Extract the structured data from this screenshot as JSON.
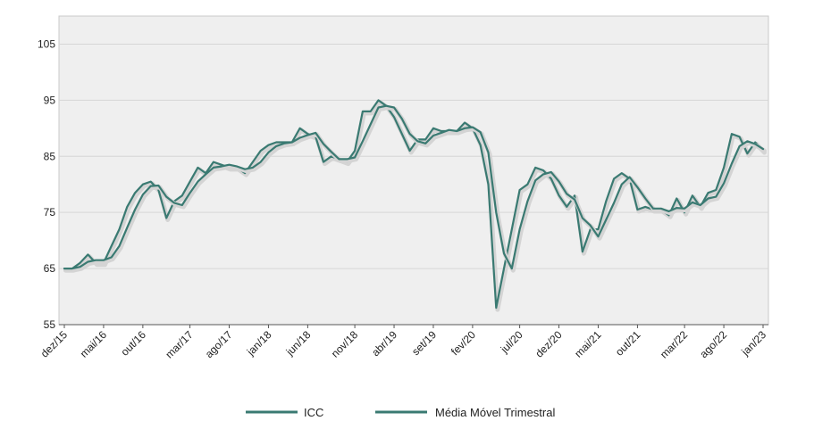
{
  "chart_data": {
    "type": "line",
    "title": "",
    "xlabel": "",
    "ylabel": "",
    "ylim": [
      55,
      110
    ],
    "yticks": [
      55,
      65,
      75,
      85,
      95,
      105
    ],
    "xtick_labels": [
      "dez/15",
      "mai/16",
      "out/16",
      "mar/17",
      "ago/17",
      "jan/18",
      "jun/18",
      "nov/18",
      "abr/19",
      "set/19",
      "fev/20",
      "jul/20",
      "dez/20",
      "mai/21",
      "out/21",
      "mar/22",
      "ago/22",
      "jan/23"
    ],
    "grid": true,
    "legend_position": "bottom",
    "colors": {
      "line": "#3a7a72",
      "plot_bg": "#efefef",
      "grid": "#d6d6d6"
    },
    "series": [
      {
        "name": "ICC",
        "values": [
          65,
          65,
          66,
          67.5,
          66,
          66,
          69,
          72,
          76,
          78.5,
          80,
          80.5,
          79,
          74,
          77,
          78,
          80.5,
          83,
          82,
          84,
          83.5,
          83,
          83,
          82,
          84,
          86,
          87,
          87.5,
          87.5,
          87.5,
          90,
          89,
          88.5,
          84,
          85,
          84.5,
          84,
          86,
          93,
          93,
          95,
          94,
          92,
          89,
          86,
          88,
          88,
          90,
          89.5,
          89.5,
          89.5,
          91,
          90,
          87,
          80,
          58,
          65,
          72,
          79,
          80,
          83,
          82.5,
          81,
          78,
          76,
          78,
          68,
          72,
          72,
          77,
          81,
          82,
          81,
          75.5,
          76,
          75.5,
          75.5,
          74.5,
          77.5,
          75,
          78,
          76,
          78.5,
          79,
          83,
          89,
          88.5,
          85.5,
          87.5,
          86
        ]
      },
      {
        "name": "Média Móvel Trimestral",
        "values": [
          65,
          65,
          65.3,
          66.2,
          66.5,
          66.5,
          67,
          69,
          72.3,
          75.5,
          78.2,
          79.7,
          79.8,
          77.8,
          76.7,
          76.3,
          78.5,
          80.5,
          81.8,
          83,
          83.2,
          83.5,
          83.2,
          82.7,
          83,
          84,
          85.7,
          86.8,
          87.3,
          87.5,
          88.3,
          88.8,
          89.2,
          87.2,
          85.8,
          84.5,
          84.5,
          84.8,
          87.7,
          90.7,
          93.7,
          94,
          93.7,
          91.7,
          89,
          87.7,
          87.3,
          88.7,
          89.2,
          89.7,
          89.5,
          90,
          90.2,
          89.3,
          85.7,
          75,
          67.7,
          65,
          72,
          77,
          80.7,
          81.8,
          82.2,
          80.5,
          78.3,
          77.3,
          74,
          72.7,
          70.7,
          73.7,
          76.7,
          80,
          81.3,
          79.5,
          77.5,
          75.7,
          75.7,
          75.2,
          75.8,
          75.7,
          76.8,
          76.3,
          77.5,
          77.8,
          80.2,
          83.7,
          86.8,
          87.7,
          87.2,
          86.3
        ]
      }
    ]
  }
}
